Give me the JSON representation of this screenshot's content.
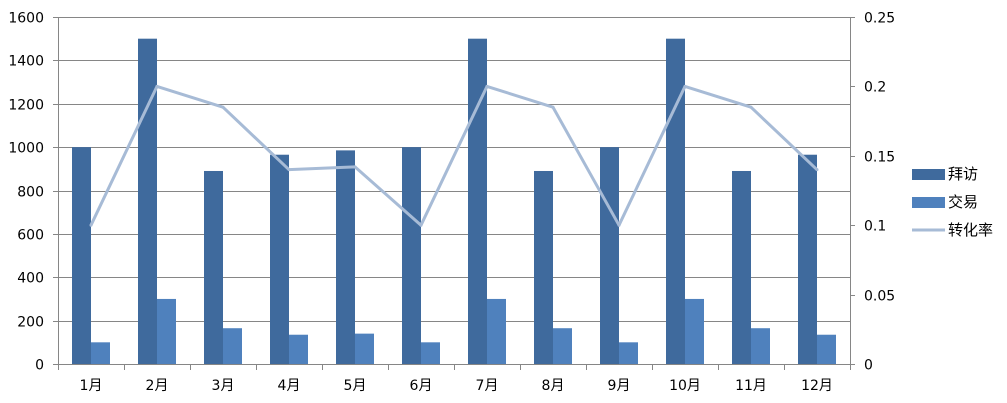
{
  "chart_data": {
    "type": "bar",
    "categories": [
      "1月",
      "2月",
      "3月",
      "4月",
      "5月",
      "6月",
      "7月",
      "8月",
      "9月",
      "10月",
      "11月",
      "12月"
    ],
    "series": [
      {
        "name": "拜访",
        "type": "bar",
        "axis": "left",
        "color": "#3F6A9D",
        "values": [
          1000,
          1500,
          890,
          965,
          985,
          1000,
          1500,
          890,
          1000,
          1500,
          890,
          965
        ]
      },
      {
        "name": "交易",
        "type": "bar",
        "axis": "left",
        "color": "#4F81BD",
        "values": [
          100,
          300,
          165,
          135,
          140,
          100,
          300,
          165,
          100,
          300,
          165,
          135
        ]
      },
      {
        "name": "转化率",
        "type": "line",
        "axis": "right",
        "color": "#A7BBD6",
        "values": [
          0.1,
          0.2,
          0.185,
          0.14,
          0.142,
          0.1,
          0.2,
          0.185,
          0.1,
          0.2,
          0.185,
          0.14
        ]
      }
    ],
    "y_left": {
      "min": 0,
      "max": 1600,
      "ticks": [
        "0",
        "200",
        "400",
        "600",
        "800",
        "1000",
        "1200",
        "1400",
        "1600"
      ]
    },
    "y_right": {
      "min": 0,
      "max": 0.25,
      "ticks": [
        "0",
        "0.05",
        "0.1",
        "0.15",
        "0.2",
        "0.25"
      ]
    },
    "grid": true,
    "legend_position": "right",
    "title": "",
    "xlabel": "",
    "ylabel": ""
  }
}
